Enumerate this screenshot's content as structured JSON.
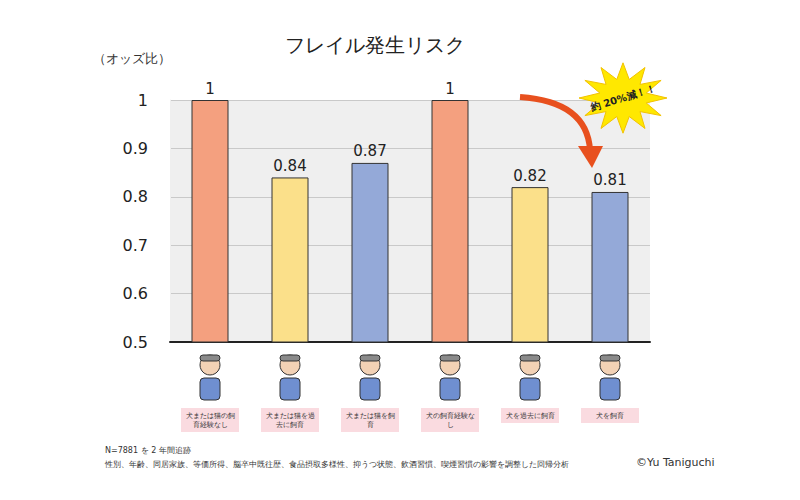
{
  "chart_data": {
    "type": "bar",
    "title": "フレイル発生リスク",
    "y_label": "（オッズ比）",
    "categories": [
      "犬または猫の飼育経験なし",
      "犬または猫を過去に飼育",
      "犬または猫を飼育",
      "犬の飼育経験なし",
      "犬を過去に飼育",
      "犬を飼育"
    ],
    "values": [
      1,
      0.84,
      0.87,
      1,
      0.82,
      0.81
    ],
    "colors": [
      "#f4a07f",
      "#fbe08a",
      "#94a9d8",
      "#f4a07f",
      "#fbe08a",
      "#94a9d8"
    ],
    "ylim": [
      0.5,
      1
    ],
    "yticks": [
      0.5,
      0.6,
      0.7,
      0.8,
      0.9,
      1
    ],
    "grid": true,
    "data_labels": true,
    "annotations": [
      "約 20%減！！"
    ],
    "footnotes": [
      "N=7881 を 2 年間追跡",
      "性別、年齢、同居家族、等価所得、脳卒中既往歴、食品摂取多様性、抑うつ状態、飲酒習慣、喫煙習慣の影響を調整した回帰分析"
    ],
    "credit": "©Yu Taniguchi"
  }
}
